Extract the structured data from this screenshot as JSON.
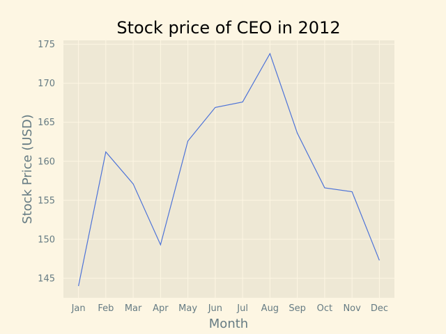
{
  "chart_data": {
    "type": "line",
    "title": "Stock price of CEO in 2012",
    "xlabel": "Month",
    "ylabel": "Stock Price (USD)",
    "categories": [
      "Jan",
      "Feb",
      "Mar",
      "Apr",
      "May",
      "Jun",
      "Jul",
      "Aug",
      "Sep",
      "Oct",
      "Nov",
      "Dec"
    ],
    "series": [
      {
        "values": [
          144.0,
          161.2,
          157.1,
          149.3,
          162.6,
          166.9,
          167.6,
          173.8,
          163.6,
          156.6,
          156.1,
          147.3
        ]
      }
    ],
    "ylim": [
      142.5,
      175.5
    ],
    "yticks": [
      145,
      150,
      155,
      160,
      165,
      170,
      175
    ],
    "grid": true,
    "legend": "none",
    "colors": {
      "figure_background": "#fdf6e3",
      "plot_background": "#eee8d5",
      "grid": "#fdf6e3",
      "line": "#4c72d8",
      "tick_text": "#657b83",
      "title_text": "#000000"
    }
  }
}
